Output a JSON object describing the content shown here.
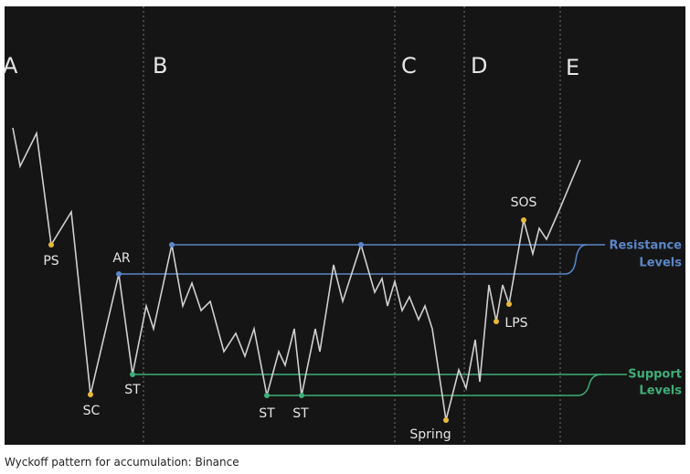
{
  "diagram": {
    "phases": [
      "A",
      "B",
      "C",
      "D",
      "E"
    ],
    "points": [
      "PS",
      "SC",
      "AR",
      "ST",
      "ST",
      "ST",
      "Spring",
      "LPS",
      "SOS"
    ],
    "resistance": {
      "line1": "Resistance",
      "line2": "Levels"
    },
    "support": {
      "line1": "Support",
      "line2": "Levels"
    }
  },
  "caption": "Wyckoff pattern for accumulation: Binance"
}
